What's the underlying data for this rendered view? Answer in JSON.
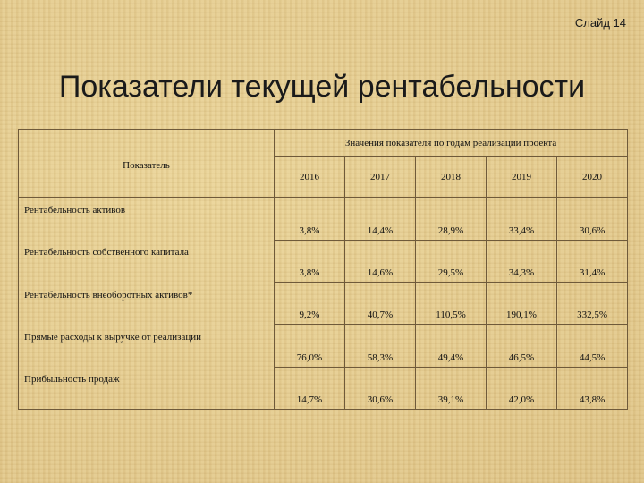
{
  "slide_label": "Слайд 14",
  "title": "Показатели текущей рентабельности",
  "table": {
    "indicator_header": "Показатель",
    "group_header": "Значения показателя по годам реализации проекта",
    "years": [
      "2016",
      "2017",
      "2018",
      "2019",
      "2020"
    ],
    "rows": [
      {
        "label": "Рентабельность активов",
        "values": [
          "3,8%",
          "14,4%",
          "28,9%",
          "33,4%",
          "30,6%"
        ]
      },
      {
        "label": "Рентабельность собственного капитала",
        "values": [
          "3,8%",
          "14,6%",
          "29,5%",
          "34,3%",
          "31,4%"
        ]
      },
      {
        "label": "Рентабельность внеоборотных активов*",
        "values": [
          "9,2%",
          "40,7%",
          "110,5%",
          "190,1%",
          "332,5%"
        ]
      },
      {
        "label": "Прямые расходы к выручке от реализации",
        "values": [
          "76,0%",
          "58,3%",
          "49,4%",
          "46,5%",
          "44,5%"
        ]
      },
      {
        "label": "Прибыльность продаж",
        "values": [
          "14,7%",
          "30,6%",
          "39,1%",
          "42,0%",
          "43,8%"
        ]
      }
    ]
  }
}
